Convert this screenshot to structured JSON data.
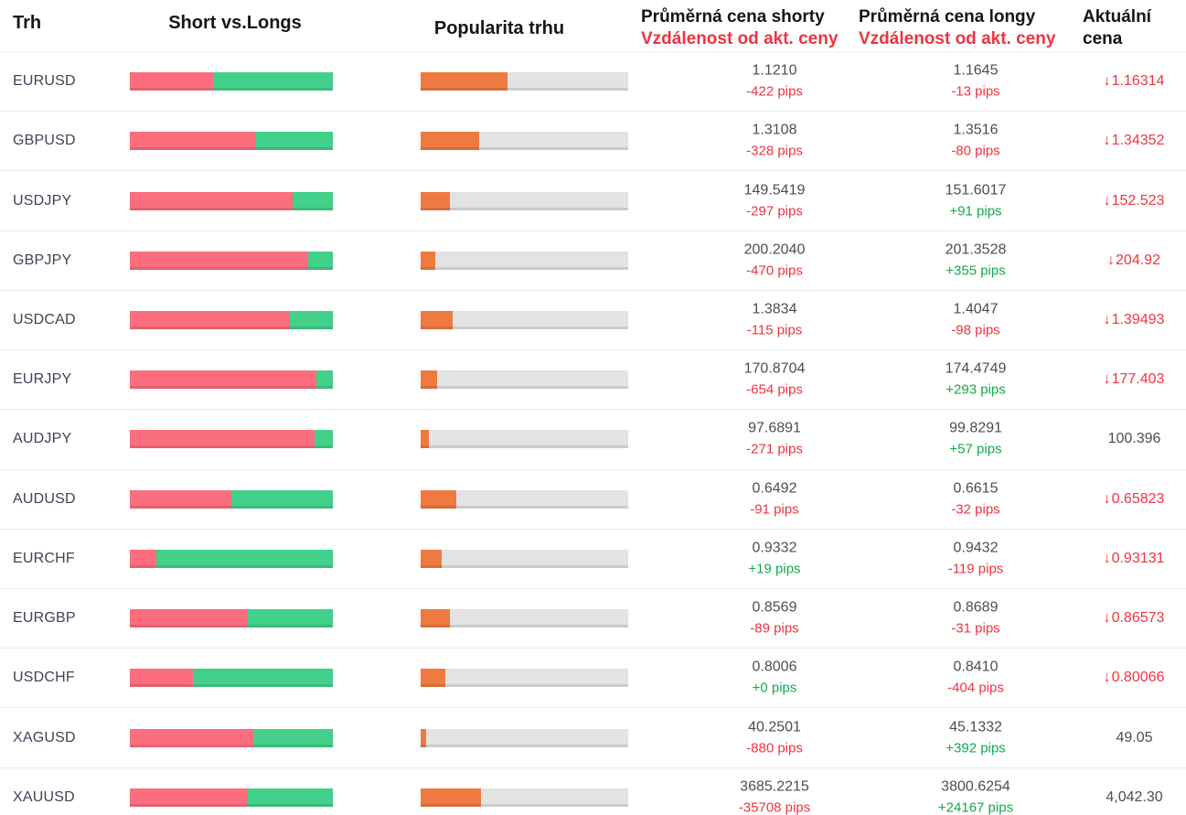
{
  "header": {
    "col_market": "Trh",
    "col_shortlong": "Short vs.Longs",
    "col_popularity": "Popularita trhu",
    "col_short_line1": "Průměrná cena shorty",
    "col_short_line2": "Vzdálenost od akt. ceny",
    "col_long_line1": "Průměrná cena longy",
    "col_long_line2": "Vzdálenost od akt. ceny",
    "col_current_line1": "Aktuální",
    "col_current_line2": "cena"
  },
  "colors": {
    "bar_short": "#fc6d7d",
    "bar_long": "#42d08b",
    "bar_popularity": "#ee7a41",
    "bar_track": "#e3e3e3",
    "negative": "#ef3340",
    "positive": "#14a94e",
    "price_down": "#f4333f",
    "price_neutral": "#4d4d4d"
  },
  "down_arrow_glyph": "↓",
  "rows": [
    {
      "symbol": "EURUSD",
      "short_pct": 41,
      "popularity_pct": 42,
      "short_price": "1.1210",
      "short_pips": "-422 pips",
      "short_pips_dir": "neg",
      "long_price": "1.1645",
      "long_pips": "-13 pips",
      "long_pips_dir": "neg",
      "current": "1.16314",
      "current_dir": "down"
    },
    {
      "symbol": "GBPUSD",
      "short_pct": 62,
      "popularity_pct": 28,
      "short_price": "1.3108",
      "short_pips": "-328 pips",
      "short_pips_dir": "neg",
      "long_price": "1.3516",
      "long_pips": "-80 pips",
      "long_pips_dir": "neg",
      "current": "1.34352",
      "current_dir": "down"
    },
    {
      "symbol": "USDJPY",
      "short_pct": 80,
      "popularity_pct": 14,
      "short_price": "149.5419",
      "short_pips": "-297 pips",
      "short_pips_dir": "neg",
      "long_price": "151.6017",
      "long_pips": "+91 pips",
      "long_pips_dir": "pos",
      "current": "152.523",
      "current_dir": "down"
    },
    {
      "symbol": "GBPJPY",
      "short_pct": 88,
      "popularity_pct": 7,
      "short_price": "200.2040",
      "short_pips": "-470 pips",
      "short_pips_dir": "neg",
      "long_price": "201.3528",
      "long_pips": "+355 pips",
      "long_pips_dir": "pos",
      "current": "204.92",
      "current_dir": "down"
    },
    {
      "symbol": "USDCAD",
      "short_pct": 79,
      "popularity_pct": 15.5,
      "short_price": "1.3834",
      "short_pips": "-115 pips",
      "short_pips_dir": "neg",
      "long_price": "1.4047",
      "long_pips": "-98 pips",
      "long_pips_dir": "neg",
      "current": "1.39493",
      "current_dir": "down"
    },
    {
      "symbol": "EURJPY",
      "short_pct": 92,
      "popularity_pct": 8,
      "short_price": "170.8704",
      "short_pips": "-654 pips",
      "short_pips_dir": "neg",
      "long_price": "174.4749",
      "long_pips": "+293 pips",
      "long_pips_dir": "pos",
      "current": "177.403",
      "current_dir": "down"
    },
    {
      "symbol": "AUDJPY",
      "short_pct": 91,
      "popularity_pct": 4,
      "short_price": "97.6891",
      "short_pips": "-271 pips",
      "short_pips_dir": "neg",
      "long_price": "99.8291",
      "long_pips": "+57 pips",
      "long_pips_dir": "pos",
      "current": "100.396",
      "current_dir": "neutral"
    },
    {
      "symbol": "AUDUSD",
      "short_pct": 50,
      "popularity_pct": 17,
      "short_price": "0.6492",
      "short_pips": "-91 pips",
      "short_pips_dir": "neg",
      "long_price": "0.6615",
      "long_pips": "-32 pips",
      "long_pips_dir": "neg",
      "current": "0.65823",
      "current_dir": "down"
    },
    {
      "symbol": "EURCHF",
      "short_pct": 13,
      "popularity_pct": 10,
      "short_price": "0.9332",
      "short_pips": "+19 pips",
      "short_pips_dir": "pos",
      "long_price": "0.9432",
      "long_pips": "-119 pips",
      "long_pips_dir": "neg",
      "current": "0.93131",
      "current_dir": "down"
    },
    {
      "symbol": "EURGBP",
      "short_pct": 58,
      "popularity_pct": 14,
      "short_price": "0.8569",
      "short_pips": "-89 pips",
      "short_pips_dir": "neg",
      "long_price": "0.8689",
      "long_pips": "-31 pips",
      "long_pips_dir": "neg",
      "current": "0.86573",
      "current_dir": "down"
    },
    {
      "symbol": "USDCHF",
      "short_pct": 31,
      "popularity_pct": 12,
      "short_price": "0.8006",
      "short_pips": "+0 pips",
      "short_pips_dir": "pos",
      "long_price": "0.8410",
      "long_pips": "-404 pips",
      "long_pips_dir": "neg",
      "current": "0.80066",
      "current_dir": "down"
    },
    {
      "symbol": "XAGUSD",
      "short_pct": 61,
      "popularity_pct": 2.5,
      "short_price": "40.2501",
      "short_pips": "-880 pips",
      "short_pips_dir": "neg",
      "long_price": "45.1332",
      "long_pips": "+392 pips",
      "long_pips_dir": "pos",
      "current": "49.05",
      "current_dir": "neutral"
    },
    {
      "symbol": "XAUUSD",
      "short_pct": 58,
      "popularity_pct": 29,
      "short_price": "3685.2215",
      "short_pips": "-35708 pips",
      "short_pips_dir": "neg",
      "long_price": "3800.6254",
      "long_pips": "+24167 pips",
      "long_pips_dir": "pos",
      "current": "4,042.30",
      "current_dir": "neutral"
    }
  ]
}
